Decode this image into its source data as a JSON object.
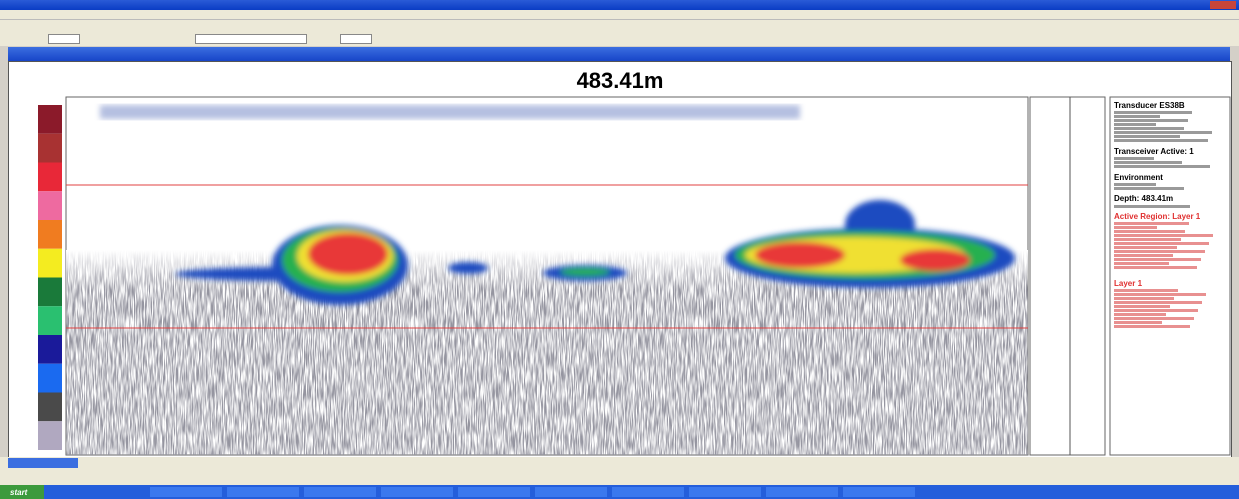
{
  "window": {
    "depth_readout": "483.41m"
  },
  "info_panel": {
    "transducer": "Transducer ES38B",
    "transceiver": "Transceiver Active: 1",
    "environment": "Environment",
    "depth": "Depth: 483.41m",
    "active_region": "Active Region: Layer 1",
    "layer": "Layer 1"
  },
  "taskbar": {
    "start": "start"
  }
}
